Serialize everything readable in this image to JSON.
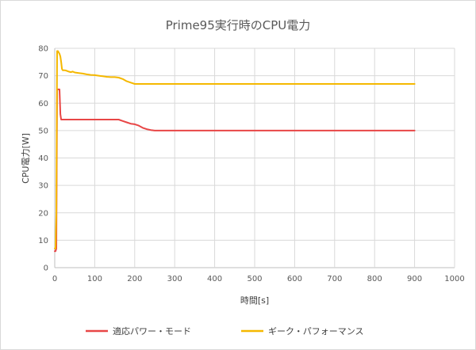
{
  "chart_data": {
    "type": "line",
    "title": "Prime95実行時のCPU電力",
    "xlabel": "時間[s]",
    "ylabel": "CPU電力[W]",
    "xlim": [
      0,
      1000
    ],
    "ylim": [
      0,
      80
    ],
    "xticks": [
      0,
      100,
      200,
      300,
      400,
      500,
      600,
      700,
      800,
      900,
      1000
    ],
    "yticks": [
      0,
      10,
      20,
      30,
      40,
      50,
      60,
      70,
      80
    ],
    "grid": true,
    "legend_position": "bottom",
    "series": [
      {
        "name": "適応パワー・モード",
        "color": "#e84646",
        "x": [
          0,
          2,
          4,
          6,
          8,
          10,
          12,
          14,
          16,
          18,
          20,
          30,
          50,
          100,
          150,
          160,
          170,
          180,
          190,
          200,
          210,
          220,
          230,
          240,
          250,
          260,
          300,
          400,
          500,
          600,
          700,
          800,
          900
        ],
        "y": [
          6,
          6,
          7,
          65,
          65,
          65,
          65,
          56,
          54,
          54,
          54,
          54,
          54,
          54,
          54,
          54,
          53.5,
          53,
          52.5,
          52.3,
          51.8,
          51,
          50.5,
          50.2,
          50,
          50,
          50,
          50,
          50,
          50,
          50,
          50,
          50
        ]
      },
      {
        "name": "ギーク・パフォーマンス",
        "color": "#f5b800",
        "x": [
          0,
          2,
          4,
          6,
          8,
          10,
          12,
          14,
          16,
          18,
          20,
          25,
          30,
          35,
          40,
          45,
          50,
          60,
          70,
          80,
          90,
          100,
          110,
          120,
          130,
          140,
          150,
          160,
          170,
          180,
          190,
          200,
          210,
          250,
          300,
          400,
          500,
          600,
          700,
          800,
          900
        ],
        "y": [
          7,
          7,
          20,
          79,
          79,
          78.5,
          78,
          77,
          75,
          72.5,
          72,
          72,
          71.8,
          71.5,
          71.3,
          71.5,
          71.2,
          71,
          70.8,
          70.5,
          70.3,
          70.2,
          70,
          69.8,
          69.6,
          69.5,
          69.5,
          69.3,
          68.8,
          68,
          67.5,
          67,
          67,
          67,
          67,
          67,
          67,
          67,
          67,
          67,
          67
        ]
      }
    ]
  }
}
